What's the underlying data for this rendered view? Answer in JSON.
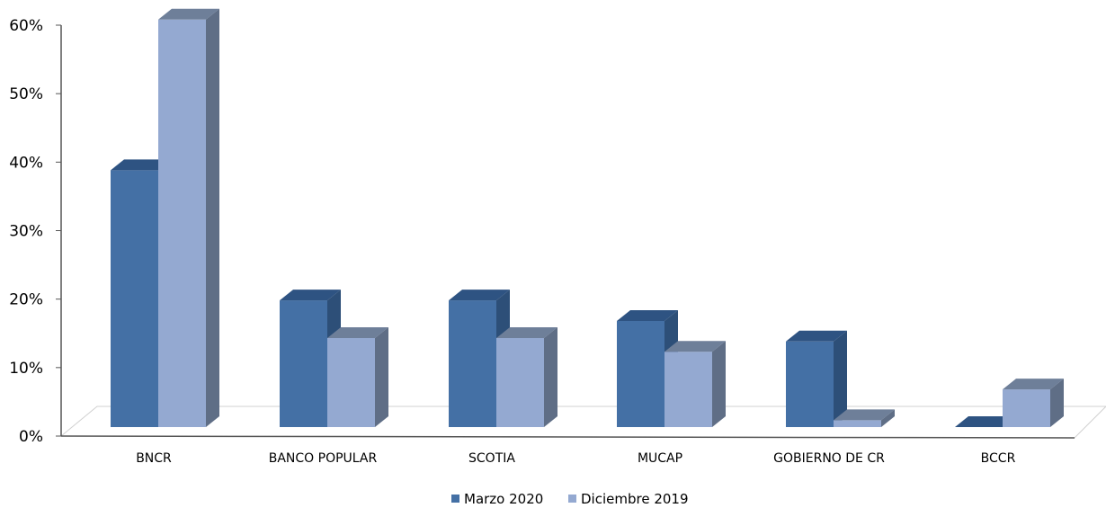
{
  "chart_data": {
    "type": "bar",
    "categories": [
      "BNCR",
      "BANCO POPULAR",
      "SCOTIA",
      "MUCAP",
      "GOBIERNO DE CR",
      "BCCR"
    ],
    "series": [
      {
        "name": "Marzo 2020",
        "values": [
          37.5,
          18.5,
          18.5,
          15.5,
          12.5,
          0
        ],
        "color": "#4470A5"
      },
      {
        "name": "Diciembre 2019",
        "values": [
          59.5,
          13,
          13,
          11,
          1,
          5.5
        ],
        "color": "#94A9D1"
      }
    ],
    "ylim": [
      0,
      60
    ],
    "yticks": [
      "0%",
      "10%",
      "20%",
      "30%",
      "40%",
      "50%",
      "60%"
    ],
    "grid": false,
    "legend_position": "bottom",
    "three_d": true
  }
}
